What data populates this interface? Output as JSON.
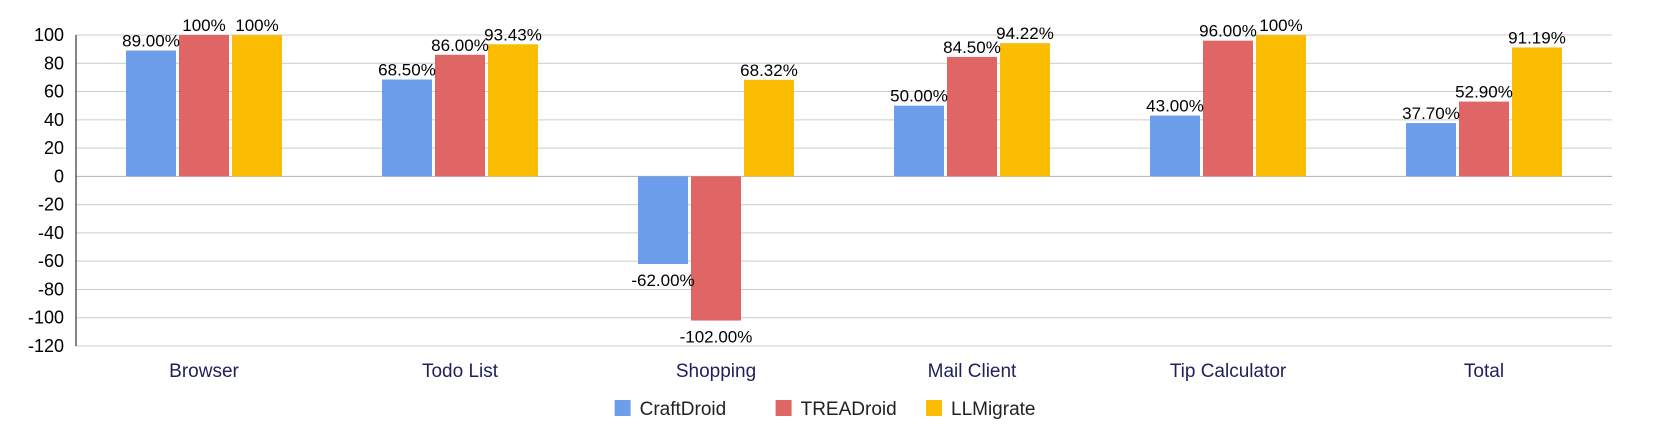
{
  "chart_data": {
    "type": "bar",
    "title": "",
    "xlabel": "",
    "ylabel": "",
    "ylim": [
      -120,
      100
    ],
    "ytick_step": 20,
    "grid": true,
    "legend_position": "bottom-center",
    "categories": [
      "Browser",
      "Todo List",
      "Shopping",
      "Mail Client",
      "Tip Calculator",
      "Total"
    ],
    "series": [
      {
        "name": "CraftDroid",
        "color": "#6d9eeb",
        "values": [
          89.0,
          68.5,
          -62.0,
          50.0,
          43.0,
          37.7
        ],
        "labels": [
          "89.00%",
          "68.50%",
          "-62.00%",
          "50.00%",
          "43.00%",
          "37.70%"
        ]
      },
      {
        "name": "TREADroid",
        "color": "#e06666",
        "values": [
          100,
          86.0,
          -102.0,
          84.5,
          96.0,
          52.9
        ],
        "labels": [
          "100%",
          "86.00%",
          "-102.00%",
          "84.50%",
          "96.00%",
          "52.90%"
        ]
      },
      {
        "name": "LLMigrate",
        "color": "#fbbc04",
        "values": [
          100,
          93.43,
          68.32,
          94.22,
          100,
          91.19
        ],
        "labels": [
          "100%",
          "93.43%",
          "68.32%",
          "94.22%",
          "100%",
          "91.19%"
        ]
      }
    ]
  }
}
